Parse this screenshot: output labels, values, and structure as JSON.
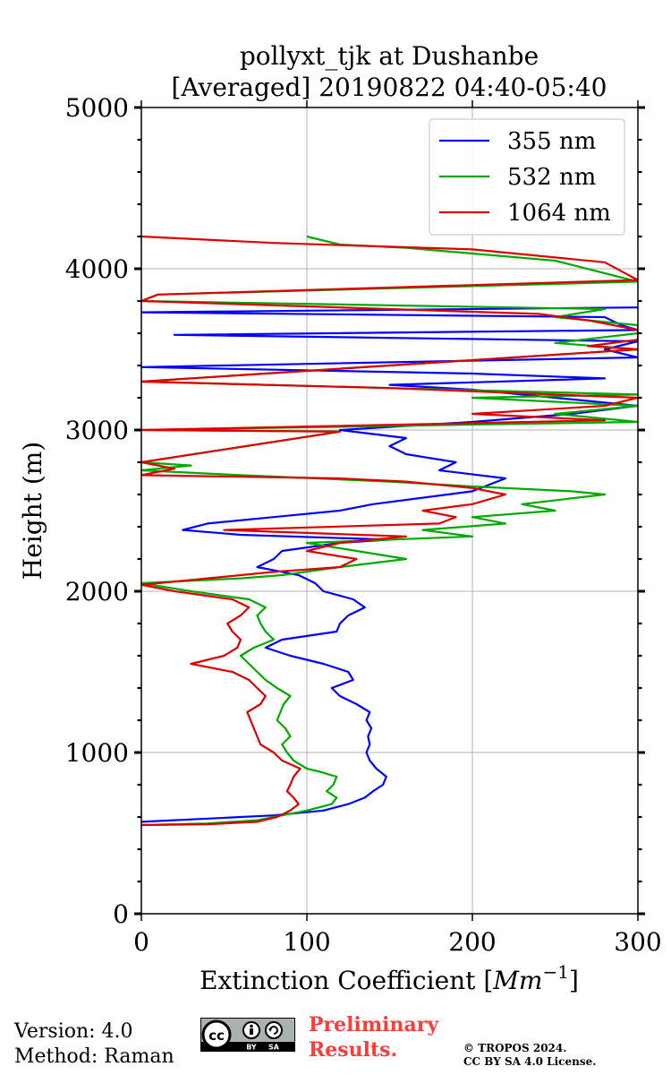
{
  "chart_data": {
    "type": "line",
    "title_line1": "pollyxt_tjk at Dushanbe",
    "title_line2": "[Averaged] 20190822 04:40-05:40",
    "xlabel": "Extinction Coefficient [",
    "xlabel_unit": "Mm",
    "xlabel_exp": "−1",
    "xlabel_close": "]",
    "ylabel": "Height (m)",
    "xlim": [
      0,
      300
    ],
    "ylim": [
      0,
      5000
    ],
    "xticks": [
      0,
      100,
      200,
      300
    ],
    "yticks": [
      0,
      1000,
      2000,
      3000,
      4000,
      5000
    ],
    "grid": true,
    "legend_position": "top-right",
    "series": [
      {
        "name": "355 nm",
        "color": "#0000ff",
        "points": [
          [
            0,
            570
          ],
          [
            40,
            590
          ],
          [
            80,
            610
          ],
          [
            110,
            640
          ],
          [
            125,
            680
          ],
          [
            135,
            720
          ],
          [
            140,
            760
          ],
          [
            146,
            800
          ],
          [
            148,
            850
          ],
          [
            142,
            900
          ],
          [
            138,
            950
          ],
          [
            136,
            1000
          ],
          [
            138,
            1050
          ],
          [
            137,
            1100
          ],
          [
            139,
            1150
          ],
          [
            136,
            1200
          ],
          [
            138,
            1250
          ],
          [
            130,
            1300
          ],
          [
            120,
            1350
          ],
          [
            115,
            1400
          ],
          [
            128,
            1450
          ],
          [
            125,
            1500
          ],
          [
            110,
            1550
          ],
          [
            90,
            1600
          ],
          [
            75,
            1650
          ],
          [
            85,
            1700
          ],
          [
            118,
            1750
          ],
          [
            120,
            1800
          ],
          [
            125,
            1850
          ],
          [
            135,
            1900
          ],
          [
            128,
            1950
          ],
          [
            110,
            2000
          ],
          [
            105,
            2050
          ],
          [
            95,
            2100
          ],
          [
            70,
            2150
          ],
          [
            80,
            2200
          ],
          [
            85,
            2250
          ],
          [
            120,
            2300
          ],
          [
            150,
            2320
          ],
          [
            60,
            2350
          ],
          [
            25,
            2380
          ],
          [
            40,
            2420
          ],
          [
            80,
            2460
          ],
          [
            120,
            2500
          ],
          [
            140,
            2540
          ],
          [
            170,
            2580
          ],
          [
            200,
            2620
          ],
          [
            220,
            2700
          ],
          [
            180,
            2750
          ],
          [
            190,
            2800
          ],
          [
            160,
            2850
          ],
          [
            150,
            2900
          ],
          [
            160,
            2950
          ],
          [
            120,
            3000
          ],
          [
            200,
            3050
          ],
          [
            260,
            3100
          ],
          [
            300,
            3150
          ],
          [
            250,
            3200
          ],
          [
            200,
            3250
          ],
          [
            150,
            3280
          ],
          [
            280,
            3320
          ],
          [
            200,
            3350
          ],
          [
            0,
            3390
          ],
          [
            300,
            3450
          ],
          [
            280,
            3500
          ],
          [
            300,
            3550
          ],
          [
            20,
            3590
          ],
          [
            300,
            3620
          ],
          [
            290,
            3650
          ],
          [
            280,
            3700
          ],
          [
            0,
            3730
          ],
          [
            300,
            3760
          ]
        ]
      },
      {
        "name": "532 nm",
        "color": "#00aa00",
        "points": [
          [
            0,
            550
          ],
          [
            40,
            560
          ],
          [
            70,
            580
          ],
          [
            85,
            610
          ],
          [
            100,
            640
          ],
          [
            115,
            680
          ],
          [
            118,
            720
          ],
          [
            112,
            760
          ],
          [
            116,
            800
          ],
          [
            118,
            850
          ],
          [
            108,
            880
          ],
          [
            100,
            900
          ],
          [
            92,
            950
          ],
          [
            88,
            1000
          ],
          [
            85,
            1050
          ],
          [
            90,
            1100
          ],
          [
            87,
            1150
          ],
          [
            82,
            1200
          ],
          [
            84,
            1250
          ],
          [
            86,
            1300
          ],
          [
            90,
            1350
          ],
          [
            82,
            1400
          ],
          [
            75,
            1450
          ],
          [
            70,
            1500
          ],
          [
            65,
            1550
          ],
          [
            60,
            1600
          ],
          [
            68,
            1650
          ],
          [
            80,
            1700
          ],
          [
            75,
            1750
          ],
          [
            72,
            1800
          ],
          [
            70,
            1850
          ],
          [
            75,
            1900
          ],
          [
            65,
            1950
          ],
          [
            30,
            2000
          ],
          [
            0,
            2050
          ],
          [
            60,
            2080
          ],
          [
            85,
            2100
          ],
          [
            120,
            2150
          ],
          [
            160,
            2200
          ],
          [
            130,
            2250
          ],
          [
            100,
            2300
          ],
          [
            200,
            2340
          ],
          [
            170,
            2380
          ],
          [
            220,
            2420
          ],
          [
            200,
            2460
          ],
          [
            250,
            2500
          ],
          [
            230,
            2540
          ],
          [
            280,
            2600
          ],
          [
            260,
            2620
          ],
          [
            200,
            2650
          ],
          [
            150,
            2680
          ],
          [
            60,
            2720
          ],
          [
            0,
            2750
          ],
          [
            30,
            2780
          ],
          [
            0,
            2800
          ],
          [
            120,
            2990
          ],
          [
            0,
            3000
          ],
          [
            300,
            3050
          ],
          [
            250,
            3100
          ],
          [
            300,
            3150
          ],
          [
            200,
            3200
          ],
          [
            300,
            3220
          ],
          [
            0,
            3300
          ],
          [
            300,
            3500
          ],
          [
            250,
            3540
          ],
          [
            300,
            3600
          ],
          [
            300,
            3650
          ],
          [
            250,
            3700
          ],
          [
            280,
            3750
          ],
          [
            0,
            3800
          ],
          [
            10,
            3840
          ],
          [
            300,
            3920
          ],
          [
            250,
            4050
          ],
          [
            160,
            4130
          ],
          [
            120,
            4150
          ],
          [
            100,
            4200
          ]
        ]
      },
      {
        "name": "1064 nm",
        "color": "#dd0000",
        "points": [
          [
            0,
            550
          ],
          [
            40,
            555
          ],
          [
            70,
            570
          ],
          [
            82,
            600
          ],
          [
            90,
            640
          ],
          [
            95,
            680
          ],
          [
            92,
            720
          ],
          [
            88,
            760
          ],
          [
            90,
            800
          ],
          [
            92,
            850
          ],
          [
            96,
            900
          ],
          [
            85,
            950
          ],
          [
            80,
            1000
          ],
          [
            72,
            1050
          ],
          [
            70,
            1100
          ],
          [
            68,
            1150
          ],
          [
            66,
            1200
          ],
          [
            64,
            1250
          ],
          [
            72,
            1300
          ],
          [
            75,
            1350
          ],
          [
            70,
            1400
          ],
          [
            65,
            1450
          ],
          [
            55,
            1500
          ],
          [
            30,
            1550
          ],
          [
            50,
            1600
          ],
          [
            58,
            1650
          ],
          [
            60,
            1700
          ],
          [
            55,
            1750
          ],
          [
            52,
            1800
          ],
          [
            60,
            1850
          ],
          [
            65,
            1900
          ],
          [
            55,
            1950
          ],
          [
            20,
            2000
          ],
          [
            0,
            2040
          ],
          [
            40,
            2080
          ],
          [
            80,
            2120
          ],
          [
            120,
            2150
          ],
          [
            130,
            2200
          ],
          [
            100,
            2250
          ],
          [
            120,
            2300
          ],
          [
            160,
            2340
          ],
          [
            50,
            2380
          ],
          [
            180,
            2420
          ],
          [
            190,
            2460
          ],
          [
            170,
            2500
          ],
          [
            200,
            2540
          ],
          [
            220,
            2600
          ],
          [
            200,
            2640
          ],
          [
            160,
            2680
          ],
          [
            120,
            2700
          ],
          [
            0,
            2720
          ],
          [
            20,
            2760
          ],
          [
            0,
            2800
          ],
          [
            120,
            2990
          ],
          [
            0,
            3000
          ],
          [
            280,
            3060
          ],
          [
            200,
            3100
          ],
          [
            280,
            3150
          ],
          [
            300,
            3200
          ],
          [
            150,
            3260
          ],
          [
            0,
            3300
          ],
          [
            300,
            3500
          ],
          [
            270,
            3520
          ],
          [
            300,
            3560
          ],
          [
            300,
            3620
          ],
          [
            270,
            3680
          ],
          [
            240,
            3720
          ],
          [
            0,
            3800
          ],
          [
            10,
            3840
          ],
          [
            300,
            3930
          ],
          [
            280,
            4040
          ],
          [
            200,
            4120
          ],
          [
            80,
            4160
          ],
          [
            0,
            4200
          ]
        ]
      }
    ]
  },
  "footer": {
    "version": "Version: 4.0",
    "method": "Method: Raman",
    "preliminary_line1": "Preliminary",
    "preliminary_line2": "Results.",
    "copyright_line1": "© TROPOS 2024.",
    "copyright_line2": "CC BY SA 4.0 License.",
    "license_logo": {
      "cc": "cc",
      "by": "BY",
      "sa": "SA"
    }
  }
}
